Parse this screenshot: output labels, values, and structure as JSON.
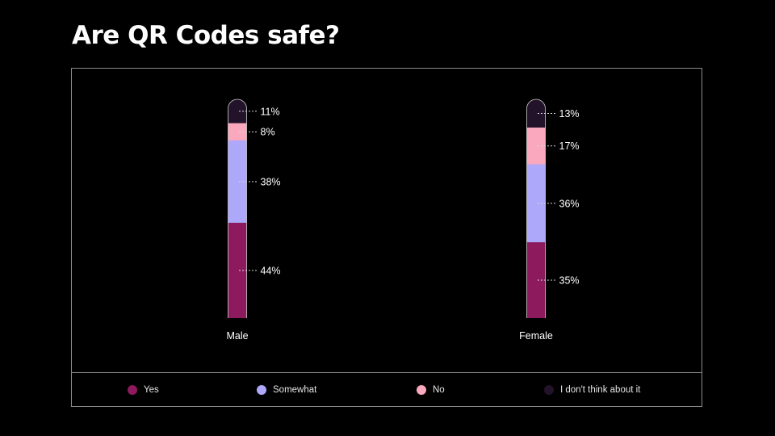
{
  "title": "Are QR Codes safe?",
  "chart_data": {
    "type": "bar",
    "stacked": true,
    "categories": [
      "Male",
      "Female"
    ],
    "series": [
      {
        "name": "Yes",
        "color": "#8e1a5e",
        "values": [
          44,
          35
        ]
      },
      {
        "name": "Somewhat",
        "color": "#aea8fb",
        "values": [
          38,
          36
        ]
      },
      {
        "name": "No",
        "color": "#f9a8bd",
        "values": [
          8,
          17
        ]
      },
      {
        "name": "I don't think about it",
        "color": "#22122a",
        "values": [
          11,
          13
        ]
      }
    ],
    "value_suffix": "%",
    "legend_position": "bottom",
    "grid": false
  }
}
